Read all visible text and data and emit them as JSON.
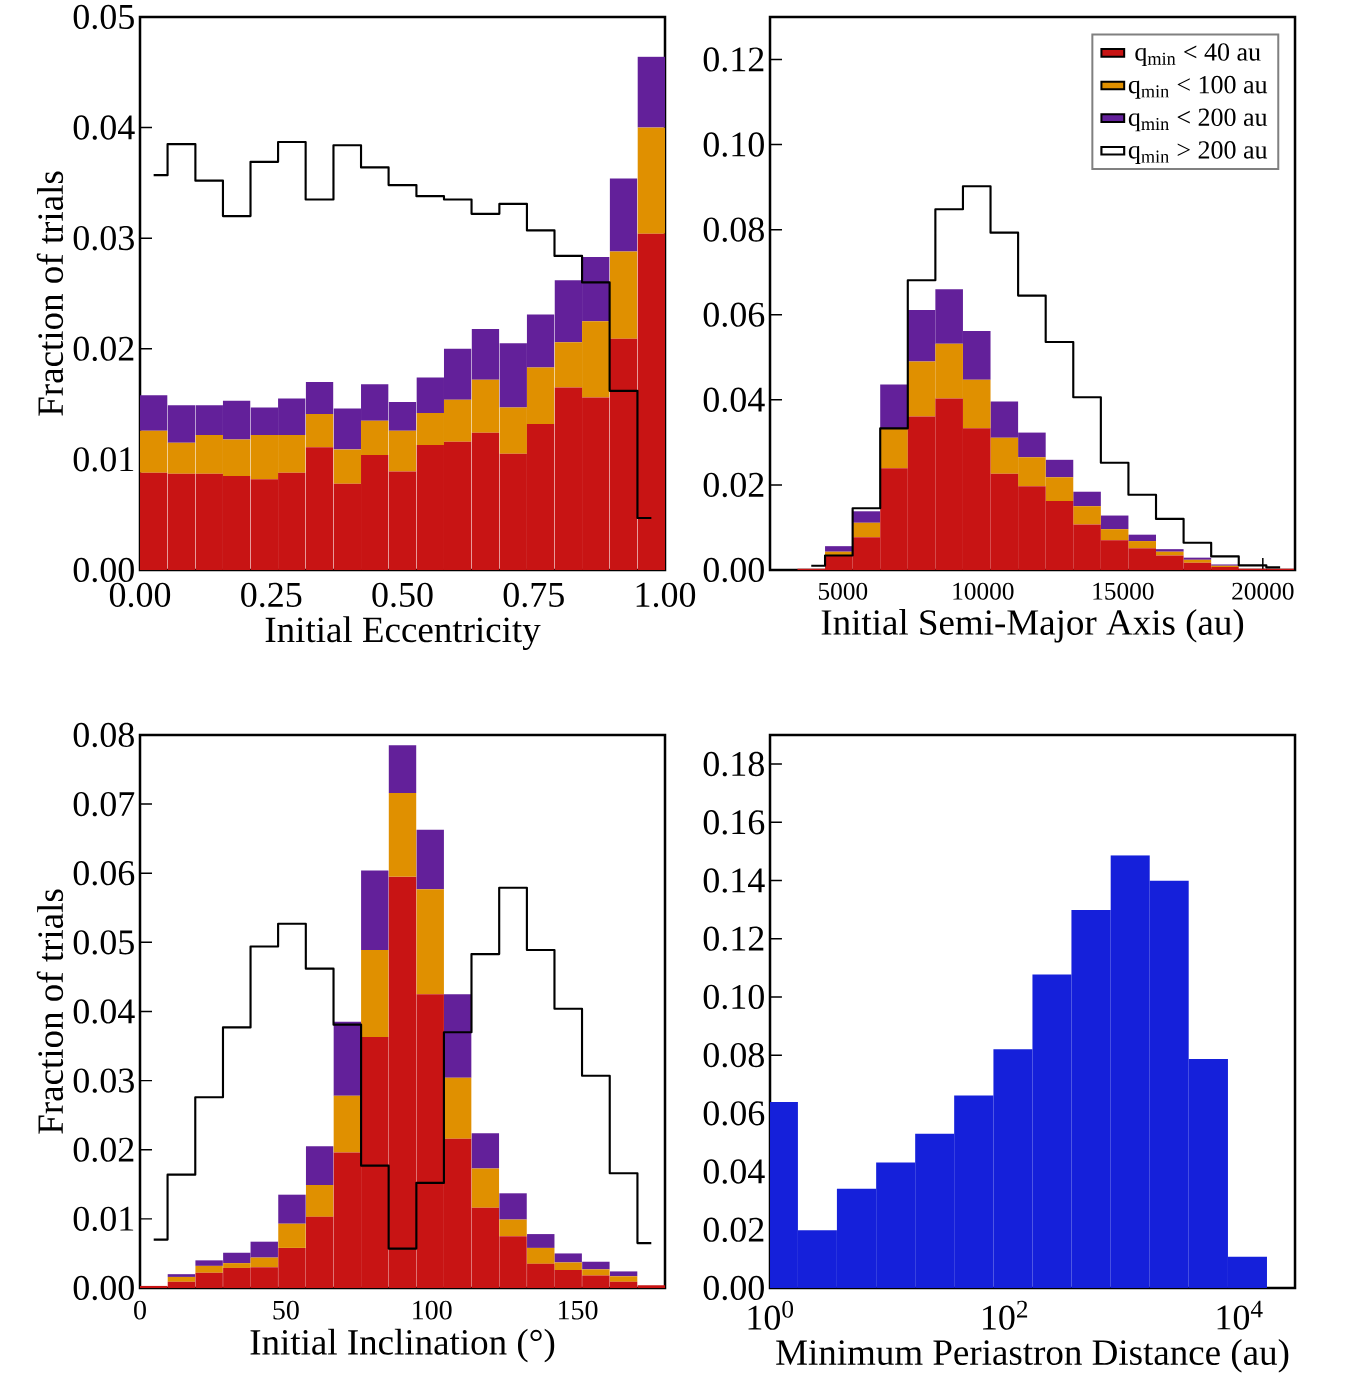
{
  "chart_data": [
    {
      "type": "bar",
      "stacked": true,
      "xlabel": "Initial Eccentricity",
      "ylabel": "Fraction of trials",
      "x": [
        0.026,
        0.079,
        0.132,
        0.184,
        0.237,
        0.289,
        0.342,
        0.395,
        0.447,
        0.5,
        0.553,
        0.605,
        0.658,
        0.711,
        0.763,
        0.816,
        0.868,
        0.921,
        0.974
      ],
      "series": [
        {
          "color": "#c81414",
          "values": [
            0.0088,
            0.0087,
            0.0087,
            0.0085,
            0.0082,
            0.0088,
            0.0111,
            0.0078,
            0.0104,
            0.0089,
            0.0113,
            0.0116,
            0.0124,
            0.0105,
            0.0132,
            0.0165,
            0.0156,
            0.0209,
            0.0304
          ]
        },
        {
          "color": "#e09000",
          "values": [
            0.0038,
            0.0028,
            0.0035,
            0.0033,
            0.004,
            0.0034,
            0.003,
            0.0031,
            0.0031,
            0.0037,
            0.0029,
            0.0038,
            0.0048,
            0.0042,
            0.0051,
            0.0041,
            0.0069,
            0.0079,
            0.0096
          ]
        },
        {
          "color": "#63209a",
          "values": [
            0.0032,
            0.0034,
            0.0027,
            0.0035,
            0.0025,
            0.0033,
            0.0029,
            0.0037,
            0.0033,
            0.0026,
            0.0032,
            0.0046,
            0.0046,
            0.0058,
            0.0048,
            0.0056,
            0.0058,
            0.0066,
            0.0064
          ]
        },
        {
          "type": "step",
          "color": "#000000",
          "values": [
            0.0357,
            0.0385,
            0.0352,
            0.032,
            0.0369,
            0.0387,
            0.0335,
            0.0384,
            0.0364,
            0.0348,
            0.0338,
            0.0335,
            0.0322,
            0.0331,
            0.0307,
            0.0284,
            0.026,
            0.0162,
            0.0047
          ]
        }
      ],
      "xlim": [
        0,
        1
      ],
      "ylim": [
        0,
        0.05
      ],
      "xticks": [
        {
          "value": 0,
          "label": "0.00"
        },
        {
          "value": 0.25,
          "label": "0.25"
        },
        {
          "value": 0.5,
          "label": "0.50"
        },
        {
          "value": 0.75,
          "label": "0.75"
        },
        {
          "value": 1,
          "label": "1.00"
        }
      ],
      "yticks": [
        {
          "value": 0,
          "label": "0.00"
        },
        {
          "value": 0.01,
          "label": "0.01"
        },
        {
          "value": 0.02,
          "label": "0.02"
        },
        {
          "value": 0.03,
          "label": "0.03"
        },
        {
          "value": 0.04,
          "label": "0.04"
        },
        {
          "value": 0.05,
          "label": "0.05"
        }
      ]
    },
    {
      "type": "bar",
      "stacked": true,
      "xlabel": "Initial Semi-Major Axis (au)",
      "legend": "top right",
      "x": [
        3873,
        4858,
        5843,
        6828,
        7813,
        8798,
        9783,
        10768,
        11753,
        12738,
        13723,
        14708,
        15693,
        16678,
        17663,
        18648,
        19633,
        20618
      ],
      "series": [
        {
          "name": "q$_{min}$ < 40 au",
          "color": "#c81414",
          "values": [
            0.0003,
            0.0034,
            0.0077,
            0.0239,
            0.0361,
            0.0403,
            0.0333,
            0.0226,
            0.0197,
            0.0162,
            0.0107,
            0.007,
            0.0051,
            0.0034,
            0.0017,
            0.0007,
            0.0003,
            0.0003
          ]
        },
        {
          "name": "q$_{min}$ < 100 au",
          "color": "#e09000",
          "values": [
            0,
            0.0009,
            0.0034,
            0.0093,
            0.0129,
            0.0129,
            0.0114,
            0.0085,
            0.0068,
            0.0056,
            0.0043,
            0.0026,
            0.0017,
            0.0009,
            0.0007,
            0.0003,
            0,
            0
          ]
        },
        {
          "name": "q$_{min}$ < 200 au",
          "color": "#63209a",
          "values": [
            0,
            0.0013,
            0.0027,
            0.0104,
            0.0121,
            0.0128,
            0.0115,
            0.0085,
            0.0058,
            0.0041,
            0.0034,
            0.0032,
            0.0015,
            0.0006,
            0.0005,
            0.0003,
            0,
            0
          ]
        },
        {
          "name": "q$_{min}$ > 200 au",
          "type": "step",
          "color": "#000000",
          "values": [
            0.001,
            0.0034,
            0.0145,
            0.0333,
            0.0681,
            0.0848,
            0.0902,
            0.0793,
            0.0645,
            0.0536,
            0.0406,
            0.0252,
            0.0177,
            0.012,
            0.0064,
            0.0032,
            0.0011,
            0.0006
          ]
        }
      ],
      "xlim": [
        2400,
        21150
      ],
      "ylim": [
        0,
        0.13
      ],
      "xticks": [
        5000,
        10000,
        15000,
        20000
      ],
      "yticks": [
        {
          "value": 0,
          "label": "0.00"
        },
        {
          "value": 0.02,
          "label": "0.02"
        },
        {
          "value": 0.04,
          "label": "0.04"
        },
        {
          "value": 0.06,
          "label": "0.06"
        },
        {
          "value": 0.08,
          "label": "0.08"
        },
        {
          "value": 0.1,
          "label": "0.10"
        },
        {
          "value": 0.12,
          "label": "0.12"
        }
      ]
    },
    {
      "type": "bar",
      "stacked": true,
      "xlabel": "Initial Inclination (°)",
      "ylabel": "Fraction of trials",
      "x": [
        4.7,
        14.2,
        23.7,
        33.2,
        42.6,
        52.1,
        61.6,
        71.1,
        80.5,
        90,
        99.5,
        108.9,
        118.4,
        127.9,
        137.4,
        146.8,
        156.3,
        165.8,
        175.3
      ],
      "series": [
        {
          "color": "#c81414",
          "values": [
            0.0003,
            0.0009,
            0.0022,
            0.0029,
            0.003,
            0.0058,
            0.0103,
            0.0196,
            0.0363,
            0.0595,
            0.0425,
            0.0216,
            0.0116,
            0.0075,
            0.0035,
            0.0026,
            0.0018,
            0.0009,
            0.0004
          ]
        },
        {
          "color": "#e09000",
          "values": [
            0,
            0.0007,
            0.001,
            0.0007,
            0.0014,
            0.0035,
            0.0046,
            0.0082,
            0.0126,
            0.0121,
            0.0152,
            0.0088,
            0.0057,
            0.0024,
            0.0023,
            0.0011,
            0.0009,
            0.0008,
            0
          ]
        },
        {
          "color": "#63209a",
          "values": [
            0,
            0.0004,
            0.0008,
            0.0015,
            0.0023,
            0.0042,
            0.0056,
            0.0107,
            0.0115,
            0.0069,
            0.0086,
            0.0121,
            0.0051,
            0.0038,
            0.002,
            0.0013,
            0.0011,
            0.0007,
            0
          ]
        },
        {
          "type": "step",
          "color": "#000000",
          "values": [
            0.007,
            0.0164,
            0.0276,
            0.0377,
            0.0494,
            0.0527,
            0.0462,
            0.0381,
            0.0177,
            0.0057,
            0.0152,
            0.037,
            0.0483,
            0.0579,
            0.0489,
            0.0404,
            0.0307,
            0.0166,
            0.0065
          ]
        }
      ],
      "xlim": [
        0,
        180
      ],
      "ylim": [
        0,
        0.08
      ],
      "xticks": [
        0,
        50,
        100,
        150
      ],
      "yticks": [
        {
          "value": 0,
          "label": "0.00"
        },
        {
          "value": 0.01,
          "label": "0.01"
        },
        {
          "value": 0.02,
          "label": "0.02"
        },
        {
          "value": 0.03,
          "label": "0.03"
        },
        {
          "value": 0.04,
          "label": "0.04"
        },
        {
          "value": 0.05,
          "label": "0.05"
        },
        {
          "value": 0.06,
          "label": "0.06"
        },
        {
          "value": 0.07,
          "label": "0.07"
        },
        {
          "value": 0.08,
          "label": "0.08"
        }
      ]
    },
    {
      "type": "histogram",
      "xlabel": "Minimum Periastron Distance (au)",
      "log": "x",
      "bins": [
        1,
        1.73,
        3.72,
        8.04,
        17.3,
        37.2,
        80.4,
        173,
        372,
        804,
        1730,
        3720,
        8040,
        17300
      ],
      "series": [
        {
          "color": "#1520da",
          "values": [
            0.0639,
            0.0198,
            0.0341,
            0.0431,
            0.053,
            0.0661,
            0.082,
            0.1077,
            0.1299,
            0.1487,
            0.1399,
            0.0787,
            0.0107
          ]
        }
      ],
      "xlim": [
        1,
        30000
      ],
      "ylim": [
        0,
        0.19
      ],
      "xticks": [
        {
          "value": 1,
          "label": "10$^{0}$"
        },
        {
          "value": 100,
          "label": "10$^{2}$"
        },
        {
          "value": 10000,
          "label": "10$^{4}$"
        }
      ],
      "yticks": [
        {
          "value": 0,
          "label": "0.00"
        },
        {
          "value": 0.02,
          "label": "0.02"
        },
        {
          "value": 0.04,
          "label": "0.04"
        },
        {
          "value": 0.06,
          "label": "0.06"
        },
        {
          "value": 0.08,
          "label": "0.08"
        },
        {
          "value": 0.1,
          "label": "0.10"
        },
        {
          "value": 0.12,
          "label": "0.12"
        },
        {
          "value": 0.14,
          "label": "0.14"
        },
        {
          "value": 0.16,
          "label": "0.16"
        },
        {
          "value": 0.18,
          "label": "0.18"
        }
      ]
    }
  ]
}
